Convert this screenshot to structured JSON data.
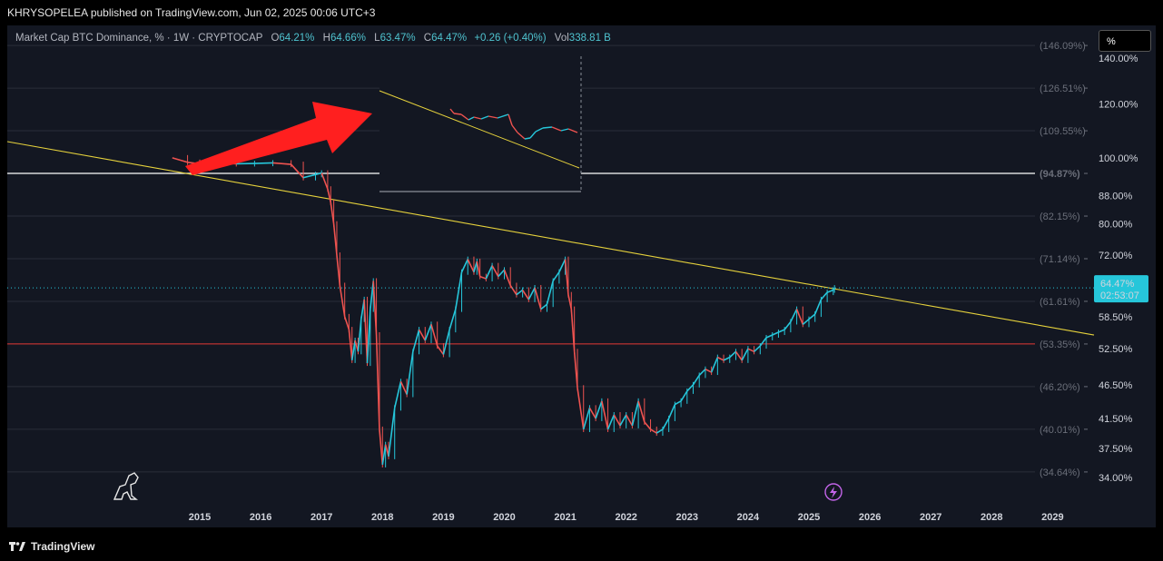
{
  "header": {
    "publisher_line": "KHRYSOPELEA published on TradingView.com, Jun 02, 2025 00:06 UTC+3"
  },
  "legend": {
    "symbol": "Market Cap BTC Dominance, % · 1W · CRYPTOCAP",
    "open_label": "O",
    "open": "64.21%",
    "high_label": "H",
    "high": "64.66%",
    "low_label": "L",
    "low": "63.47%",
    "close_label": "C",
    "close": "64.47%",
    "change": "+0.26 (+0.40%)",
    "vol_label": "Vol",
    "vol": "338.81 B"
  },
  "scale_button": "%",
  "footer": {
    "brand": "TradingView"
  },
  "colors": {
    "background": "#131722",
    "up": "#26c6da",
    "down": "#ef5350",
    "trendline": "#e6d23c",
    "support": "#e53935",
    "resistance": "#ffffff",
    "arrow": "#ff1f1f",
    "price_tag": "#26c6da"
  },
  "chart_data": {
    "type": "line",
    "title": "Market Cap BTC Dominance, % · 1W · CRYPTOCAP",
    "xlabel": "",
    "ylabel": "%",
    "x_ticks": [
      "2015",
      "2016",
      "2017",
      "2018",
      "2019",
      "2020",
      "2021",
      "2022",
      "2023",
      "2024",
      "2025",
      "2026",
      "2027",
      "2028",
      "2029"
    ],
    "y_ticks": [
      "140.00%",
      "120.00%",
      "100.00%",
      "88.00%",
      "80.00%",
      "72.00%",
      "58.50%",
      "52.50%",
      "46.50%",
      "41.50%",
      "37.50%",
      "34.00%"
    ],
    "log_levels": [
      "(146.09%)",
      "(126.51%)",
      "(109.55%)",
      "(94.87%)",
      "(82.15%)",
      "(71.14%)",
      "(61.61%)",
      "(53.35%)",
      "(46.20%)",
      "(40.01%)",
      "(34.64%)"
    ],
    "highlight_levels": {
      "resistance": "(94.87%)",
      "support": "(53.35%)"
    },
    "current": {
      "value": "64.47%",
      "countdown": "02:53:07"
    },
    "series": [
      {
        "name": "BTC Dominance",
        "x": [
          2014.55,
          2014.8,
          2015.0,
          2015.3,
          2015.6,
          2015.9,
          2016.2,
          2016.5,
          2016.7,
          2016.9,
          2017.0,
          2017.1,
          2017.15,
          2017.2,
          2017.25,
          2017.3,
          2017.38,
          2017.45,
          2017.5,
          2017.55,
          2017.6,
          2017.65,
          2017.7,
          2017.75,
          2017.8,
          2017.85,
          2017.9,
          2017.95,
          2018.0,
          2018.05,
          2018.1,
          2018.2,
          2018.3,
          2018.4,
          2018.5,
          2018.6,
          2018.7,
          2018.8,
          2018.9,
          2019.0,
          2019.1,
          2019.2,
          2019.3,
          2019.4,
          2019.5,
          2019.55,
          2019.6,
          2019.7,
          2019.8,
          2019.9,
          2020.0,
          2020.1,
          2020.2,
          2020.3,
          2020.4,
          2020.5,
          2020.6,
          2020.7,
          2020.8,
          2020.9,
          2021.0,
          2021.05,
          2021.1,
          2021.15,
          2021.2,
          2021.3,
          2021.4,
          2021.5,
          2021.6,
          2021.7,
          2021.8,
          2021.9,
          2022.0,
          2022.1,
          2022.2,
          2022.3,
          2022.4,
          2022.5,
          2022.6,
          2022.7,
          2022.8,
          2022.9,
          2023.0,
          2023.1,
          2023.2,
          2023.3,
          2023.4,
          2023.5,
          2023.6,
          2023.7,
          2023.8,
          2023.9,
          2024.0,
          2024.1,
          2024.2,
          2024.3,
          2024.4,
          2024.5,
          2024.6,
          2024.7,
          2024.8,
          2024.9,
          2025.0,
          2025.1,
          2025.2,
          2025.3,
          2025.4,
          2025.42
        ],
        "values": [
          100,
          98.5,
          98.0,
          98.2,
          98.0,
          98.1,
          98.3,
          97.8,
          93.5,
          94.5,
          95.0,
          90.0,
          86.0,
          80.0,
          72.0,
          65.0,
          58.5,
          56.0,
          50.5,
          54.0,
          52.0,
          58.0,
          62.0,
          50.0,
          60.0,
          66.0,
          55.0,
          40.0,
          35.5,
          38.0,
          36.5,
          43.0,
          47.0,
          45.0,
          52.0,
          56.0,
          54.0,
          57.0,
          53.0,
          51.5,
          56.0,
          60.0,
          68.0,
          71.0,
          68.0,
          70.5,
          67.0,
          66.5,
          69.5,
          67.0,
          68.5,
          65.0,
          63.0,
          64.0,
          62.0,
          64.5,
          60.0,
          61.0,
          66.0,
          68.0,
          71.0,
          63.0,
          60.0,
          52.0,
          46.0,
          40.0,
          43.0,
          41.5,
          44.0,
          40.0,
          42.0,
          40.5,
          42.0,
          40.5,
          44.0,
          41.0,
          40.0,
          39.5,
          40.0,
          41.5,
          43.5,
          44.0,
          45.5,
          46.5,
          48.0,
          49.0,
          48.5,
          51.0,
          50.5,
          51.0,
          52.0,
          50.5,
          52.5,
          52.0,
          53.0,
          54.5,
          55.0,
          55.5,
          56.0,
          57.5,
          60.0,
          57.0,
          58.0,
          59.0,
          62.0,
          63.5,
          64.0,
          64.47
        ]
      }
    ]
  }
}
